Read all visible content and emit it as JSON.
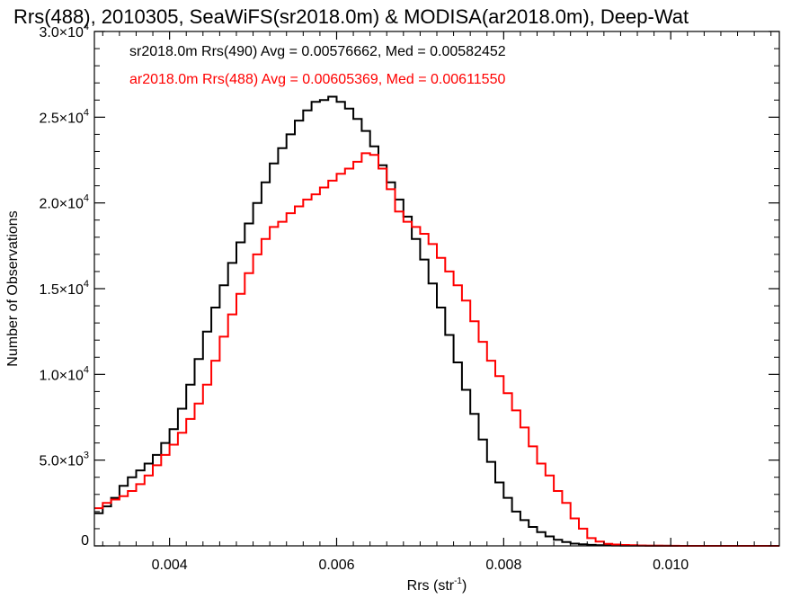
{
  "chart_data": {
    "type": "line",
    "title": "Rrs(488), 2010305, SeaWiFS(sr2018.0m) & MODISA(ar2018.0m), Deep-Wat",
    "xlabel": "Rrs (str",
    "xlabel_sup": "-1",
    "xlabel_end": ")",
    "ylabel": "Number of Observations",
    "xlim": [
      0.0031,
      0.0113
    ],
    "ylim": [
      0,
      30000
    ],
    "xticks": [
      {
        "value": 0.004,
        "label": "0.004"
      },
      {
        "value": 0.006,
        "label": "0.006"
      },
      {
        "value": 0.008,
        "label": "0.008"
      },
      {
        "value": 0.01,
        "label": "0.010"
      }
    ],
    "yticks": [
      {
        "value": 0,
        "mant": "0",
        "exp": ""
      },
      {
        "value": 5000,
        "mant": "5.0×10",
        "exp": "3"
      },
      {
        "value": 10000,
        "mant": "1.0×10",
        "exp": "4"
      },
      {
        "value": 15000,
        "mant": "1.5×10",
        "exp": "4"
      },
      {
        "value": 20000,
        "mant": "2.0×10",
        "exp": "4"
      },
      {
        "value": 25000,
        "mant": "2.5×10",
        "exp": "4"
      },
      {
        "value": 30000,
        "mant": "3.0×10",
        "exp": "4"
      }
    ],
    "legend_placement": "top-left",
    "grid": false,
    "series": [
      {
        "name": "sr2018.0m Rrs(490) Avg = 0.00576662, Med = 0.00582452",
        "color": "#000000",
        "x": [
          0.0031,
          0.0032,
          0.0033,
          0.0034,
          0.0035,
          0.0036,
          0.0037,
          0.0038,
          0.0039,
          0.004,
          0.0041,
          0.0042,
          0.0043,
          0.0044,
          0.0045,
          0.0046,
          0.0047,
          0.0048,
          0.0049,
          0.005,
          0.0051,
          0.0052,
          0.0053,
          0.0054,
          0.0055,
          0.0056,
          0.0057,
          0.0058,
          0.0059,
          0.006,
          0.0061,
          0.0062,
          0.0063,
          0.0064,
          0.0065,
          0.0066,
          0.0067,
          0.0068,
          0.0069,
          0.007,
          0.0071,
          0.0072,
          0.0073,
          0.0074,
          0.0075,
          0.0076,
          0.0077,
          0.0078,
          0.0079,
          0.008,
          0.0081,
          0.0082,
          0.0083,
          0.0084,
          0.0085,
          0.0086,
          0.0087,
          0.0088,
          0.0089,
          0.009,
          0.0091,
          0.0092,
          0.0093,
          0.0094,
          0.0095,
          0.0096,
          0.0097,
          0.0098,
          0.0099,
          0.01,
          0.0101,
          0.0102,
          0.0103,
          0.0104,
          0.0105,
          0.0106,
          0.0107,
          0.0108,
          0.0109,
          0.011,
          0.0111,
          0.0112,
          0.0113
        ],
        "y": [
          1900,
          2300,
          2800,
          3500,
          4000,
          4400,
          4800,
          5300,
          6000,
          6800,
          8000,
          9400,
          10900,
          12500,
          13900,
          15200,
          16500,
          17700,
          18800,
          20000,
          21200,
          22300,
          23200,
          24000,
          24800,
          25400,
          25900,
          26000,
          26200,
          25900,
          25500,
          24900,
          24200,
          23300,
          22200,
          21200,
          20200,
          19200,
          17900,
          16700,
          15300,
          13900,
          12300,
          10700,
          9100,
          7700,
          6200,
          4900,
          3700,
          2800,
          2000,
          1500,
          1100,
          800,
          550,
          350,
          220,
          130,
          90,
          60,
          40,
          30,
          20,
          15,
          10,
          8,
          6,
          4,
          3,
          2,
          1,
          0,
          0,
          0,
          0,
          0,
          0,
          0,
          0,
          0,
          0,
          0,
          0
        ]
      },
      {
        "name": "ar2018.0m Rrs(488) Avg = 0.00605369, Med = 0.00611550",
        "color": "#ff0000",
        "x": [
          0.0031,
          0.0032,
          0.0033,
          0.0034,
          0.0035,
          0.0036,
          0.0037,
          0.0038,
          0.0039,
          0.004,
          0.0041,
          0.0042,
          0.0043,
          0.0044,
          0.0045,
          0.0046,
          0.0047,
          0.0048,
          0.0049,
          0.005,
          0.0051,
          0.0052,
          0.0053,
          0.0054,
          0.0055,
          0.0056,
          0.0057,
          0.0058,
          0.0059,
          0.006,
          0.0061,
          0.0062,
          0.0063,
          0.0064,
          0.0065,
          0.0066,
          0.0067,
          0.0068,
          0.0069,
          0.007,
          0.0071,
          0.0072,
          0.0073,
          0.0074,
          0.0075,
          0.0076,
          0.0077,
          0.0078,
          0.0079,
          0.008,
          0.0081,
          0.0082,
          0.0083,
          0.0084,
          0.0085,
          0.0086,
          0.0087,
          0.0088,
          0.0089,
          0.009,
          0.0091,
          0.0092,
          0.0093,
          0.0094,
          0.0095,
          0.0096,
          0.0097,
          0.0098,
          0.0099,
          0.01,
          0.0101,
          0.0102,
          0.0103,
          0.0104,
          0.0105,
          0.0106,
          0.0107,
          0.0108,
          0.0109,
          0.011,
          0.0111,
          0.0112,
          0.0113
        ],
        "y": [
          2200,
          2500,
          2700,
          2900,
          3200,
          3600,
          4100,
          4700,
          5300,
          5900,
          6600,
          7400,
          8300,
          9400,
          10800,
          12200,
          13500,
          14700,
          15900,
          17000,
          17900,
          18600,
          18900,
          19400,
          19800,
          20200,
          20500,
          20900,
          21300,
          21700,
          22000,
          22400,
          22900,
          22800,
          22000,
          20800,
          19500,
          18900,
          18600,
          18200,
          17600,
          16800,
          16000,
          15200,
          14300,
          13100,
          11900,
          10800,
          9900,
          8900,
          7900,
          6900,
          5800,
          4800,
          4100,
          3200,
          2500,
          1600,
          1000,
          450,
          250,
          120,
          80,
          50,
          35,
          20,
          15,
          10,
          6,
          4,
          2,
          1,
          0,
          0,
          0,
          0,
          0,
          0,
          0,
          0,
          0,
          0,
          0
        ]
      }
    ]
  }
}
